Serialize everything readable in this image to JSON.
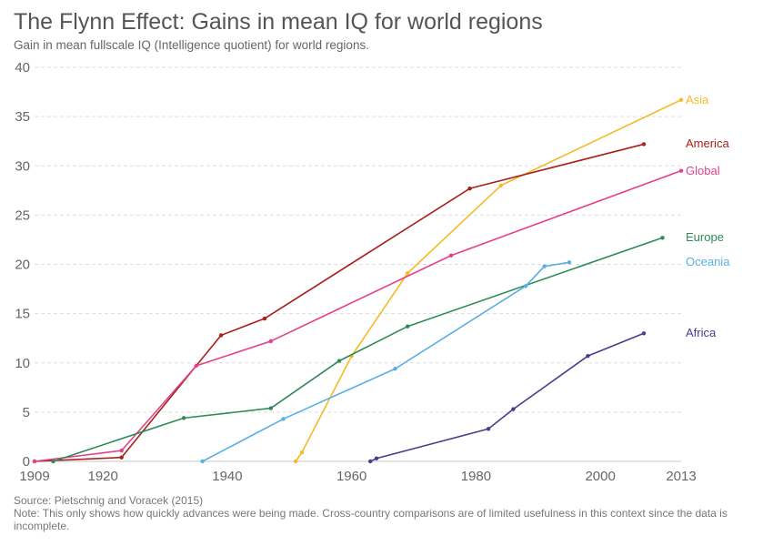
{
  "header": {
    "title": "The Flynn Effect: Gains in mean IQ for world regions",
    "subtitle": "Gain in mean fullscale IQ (Intelligence quotient) for world regions."
  },
  "footer": {
    "source": "Source: Pietschnig and Voracek (2015)",
    "note": "Note: This only shows how quickly advances were being made. Cross-country comparisons are of limited usefulness in this context since the data is incomplete."
  },
  "chart_data": {
    "type": "line",
    "title": "The Flynn Effect: Gains in mean IQ for world regions",
    "subtitle": "Gain in mean fullscale IQ (Intelligence quotient) for world regions.",
    "xlabel": "",
    "ylabel": "",
    "xlim": [
      1909,
      2013
    ],
    "ylim": [
      0,
      40
    ],
    "x_ticks": [
      1909,
      1920,
      1940,
      1960,
      1980,
      2000,
      2013
    ],
    "y_ticks": [
      0,
      5,
      10,
      15,
      20,
      25,
      30,
      35,
      40
    ],
    "grid": "horizontal-dashed",
    "legend": "inline-right",
    "series": [
      {
        "name": "Asia",
        "color": "#f7b829",
        "points": [
          [
            1951,
            0
          ],
          [
            1952,
            0.9
          ],
          [
            1960,
            10.7
          ],
          [
            1969,
            19.1
          ],
          [
            1984,
            28.0
          ],
          [
            2013,
            36.7
          ]
        ]
      },
      {
        "name": "America",
        "color": "#a8201a",
        "points": [
          [
            1909,
            0
          ],
          [
            1923,
            0.4
          ],
          [
            1939,
            12.8
          ],
          [
            1946,
            14.5
          ],
          [
            1979,
            27.7
          ],
          [
            2007,
            32.2
          ]
        ]
      },
      {
        "name": "Global",
        "color": "#e5408a",
        "points": [
          [
            1909,
            0
          ],
          [
            1923,
            1.1
          ],
          [
            1935,
            9.7
          ],
          [
            1947,
            12.2
          ],
          [
            1976,
            20.9
          ],
          [
            2013,
            29.5
          ]
        ]
      },
      {
        "name": "Europe",
        "color": "#2e8a57",
        "points": [
          [
            1912,
            0
          ],
          [
            1933,
            4.4
          ],
          [
            1947,
            5.4
          ],
          [
            1958,
            10.2
          ],
          [
            1969,
            13.7
          ],
          [
            2010,
            22.7
          ]
        ]
      },
      {
        "name": "Oceania",
        "color": "#58aee6",
        "points": [
          [
            1936,
            0
          ],
          [
            1949,
            4.3
          ],
          [
            1967,
            9.4
          ],
          [
            1988,
            17.8
          ],
          [
            1991,
            19.8
          ],
          [
            1995,
            20.2
          ]
        ]
      },
      {
        "name": "Africa",
        "color": "#4a3c8c",
        "points": [
          [
            1963,
            0
          ],
          [
            1964,
            0.3
          ],
          [
            1982,
            3.3
          ],
          [
            1986,
            5.3
          ],
          [
            1998,
            10.7
          ],
          [
            2007,
            13.0
          ]
        ]
      }
    ]
  }
}
